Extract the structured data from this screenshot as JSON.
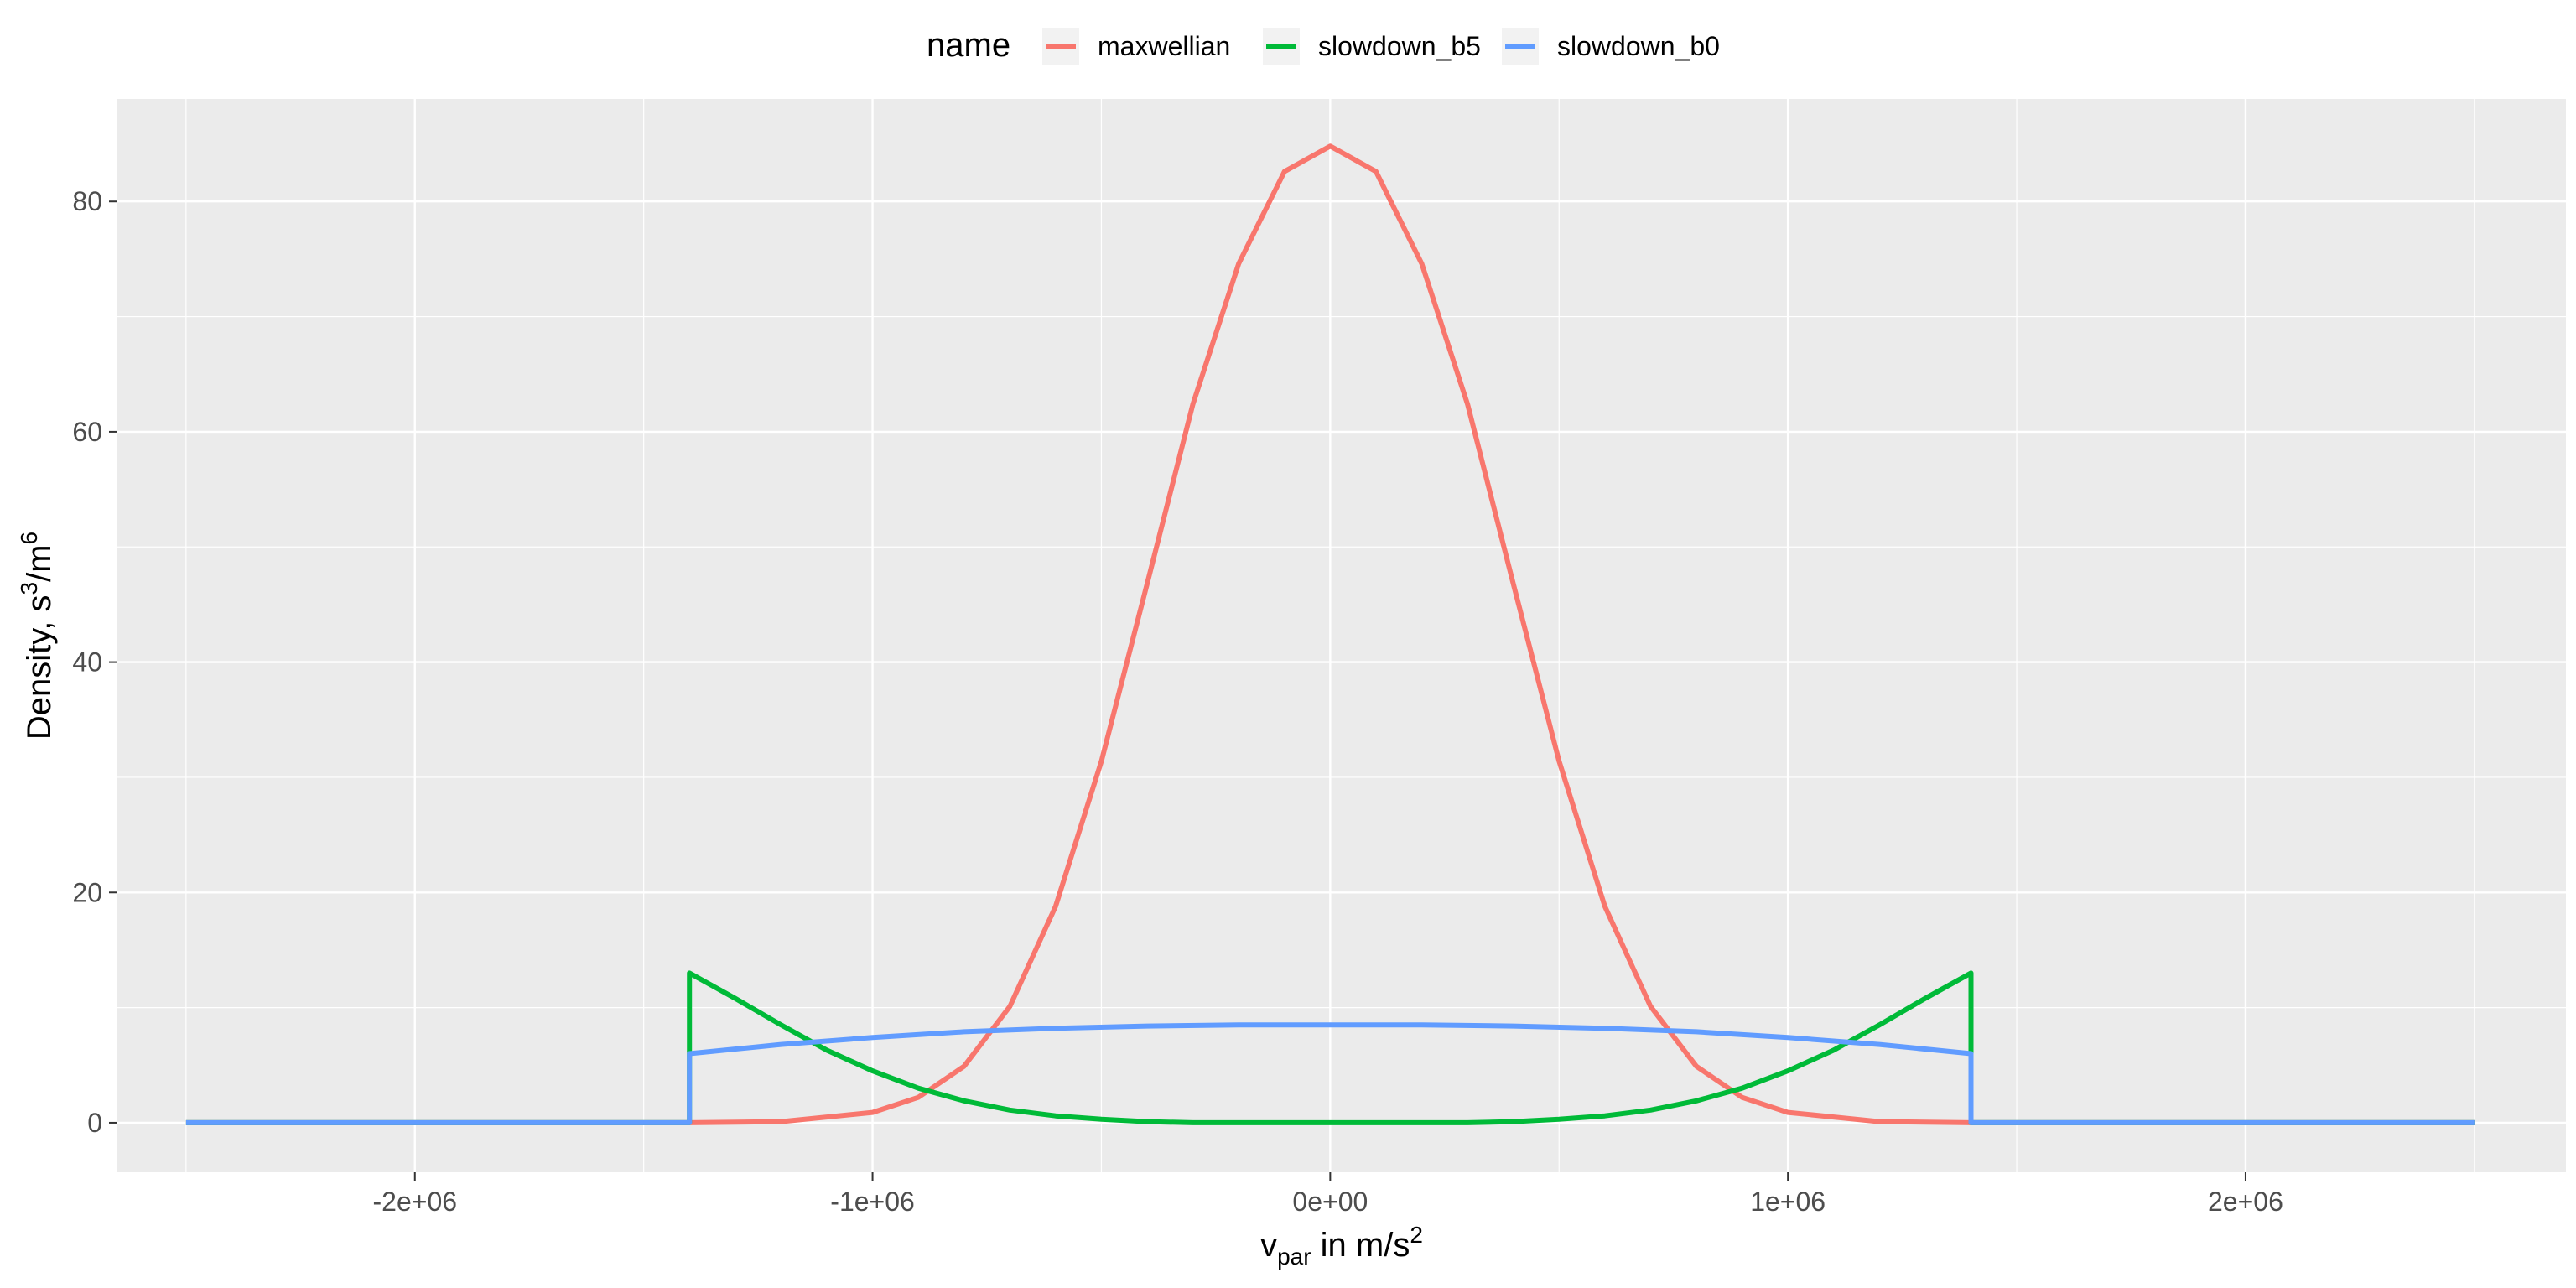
{
  "chart_data": {
    "type": "line",
    "xlabel": {
      "main": "v",
      "sub": "par",
      "mid": " in m/s",
      "sup": "2"
    },
    "ylabel": {
      "a": "Density, s",
      "sup1": "3",
      "b": "/m",
      "sup2": "6"
    },
    "legend": {
      "title": "name",
      "position": "top"
    },
    "xlim": [
      -2650000,
      2700000
    ],
    "ylim": [
      -4.3,
      88.9
    ],
    "x_ticks": [
      {
        "value": -2000000,
        "label": "-2e+06"
      },
      {
        "value": -1000000,
        "label": "-1e+06"
      },
      {
        "value": 0,
        "label": "0e+00"
      },
      {
        "value": 1000000,
        "label": "1e+06"
      },
      {
        "value": 2000000,
        "label": "2e+06"
      }
    ],
    "y_ticks": [
      {
        "value": 0,
        "label": "0"
      },
      {
        "value": 20,
        "label": "20"
      },
      {
        "value": 40,
        "label": "40"
      },
      {
        "value": 60,
        "label": "60"
      },
      {
        "value": 80,
        "label": "80"
      }
    ],
    "grid": true,
    "series": [
      {
        "name": "maxwellian",
        "color": "#F8766D",
        "x": [
          -2500000,
          -1400000,
          -1200000,
          -1000000,
          -900000,
          -800000,
          -700000,
          -600000,
          -500000,
          -400000,
          -300000,
          -200000,
          -100000,
          0,
          100000,
          200000,
          300000,
          400000,
          500000,
          600000,
          700000,
          800000,
          900000,
          1000000,
          1200000,
          1400000,
          2500000
        ],
        "y": [
          0,
          0,
          0.1,
          0.9,
          2.2,
          4.9,
          10.1,
          18.8,
          31.4,
          46.8,
          62.4,
          74.6,
          82.6,
          84.8,
          82.6,
          74.6,
          62.4,
          46.8,
          31.4,
          18.8,
          10.1,
          4.9,
          2.2,
          0.9,
          0.1,
          0,
          0
        ]
      },
      {
        "name": "slowdown_b5",
        "color": "#00BA38",
        "x": [
          -2500000,
          -1400000,
          -1400000,
          -1300000,
          -1200000,
          -1100000,
          -1000000,
          -900000,
          -800000,
          -700000,
          -600000,
          -500000,
          -400000,
          -300000,
          -200000,
          -100000,
          0,
          100000,
          200000,
          300000,
          400000,
          500000,
          600000,
          700000,
          800000,
          900000,
          1000000,
          1100000,
          1200000,
          1300000,
          1400000,
          1400000,
          2500000
        ],
        "y": [
          0,
          0,
          13.0,
          10.8,
          8.5,
          6.3,
          4.5,
          3.0,
          1.9,
          1.1,
          0.6,
          0.3,
          0.1,
          0,
          0,
          0,
          0,
          0,
          0,
          0,
          0.1,
          0.3,
          0.6,
          1.1,
          1.9,
          3.0,
          4.5,
          6.3,
          8.5,
          10.8,
          13.0,
          0,
          0
        ]
      },
      {
        "name": "slowdown_b0",
        "color": "#619CFF",
        "x": [
          -2500000,
          -1400000,
          -1400000,
          -1200000,
          -1000000,
          -800000,
          -600000,
          -400000,
          -200000,
          0,
          200000,
          400000,
          600000,
          800000,
          1000000,
          1200000,
          1400000,
          1400000,
          2500000
        ],
        "y": [
          0,
          0,
          6.0,
          6.8,
          7.4,
          7.9,
          8.2,
          8.4,
          8.5,
          8.5,
          8.5,
          8.4,
          8.2,
          7.9,
          7.4,
          6.8,
          6.0,
          0,
          0
        ]
      }
    ]
  }
}
